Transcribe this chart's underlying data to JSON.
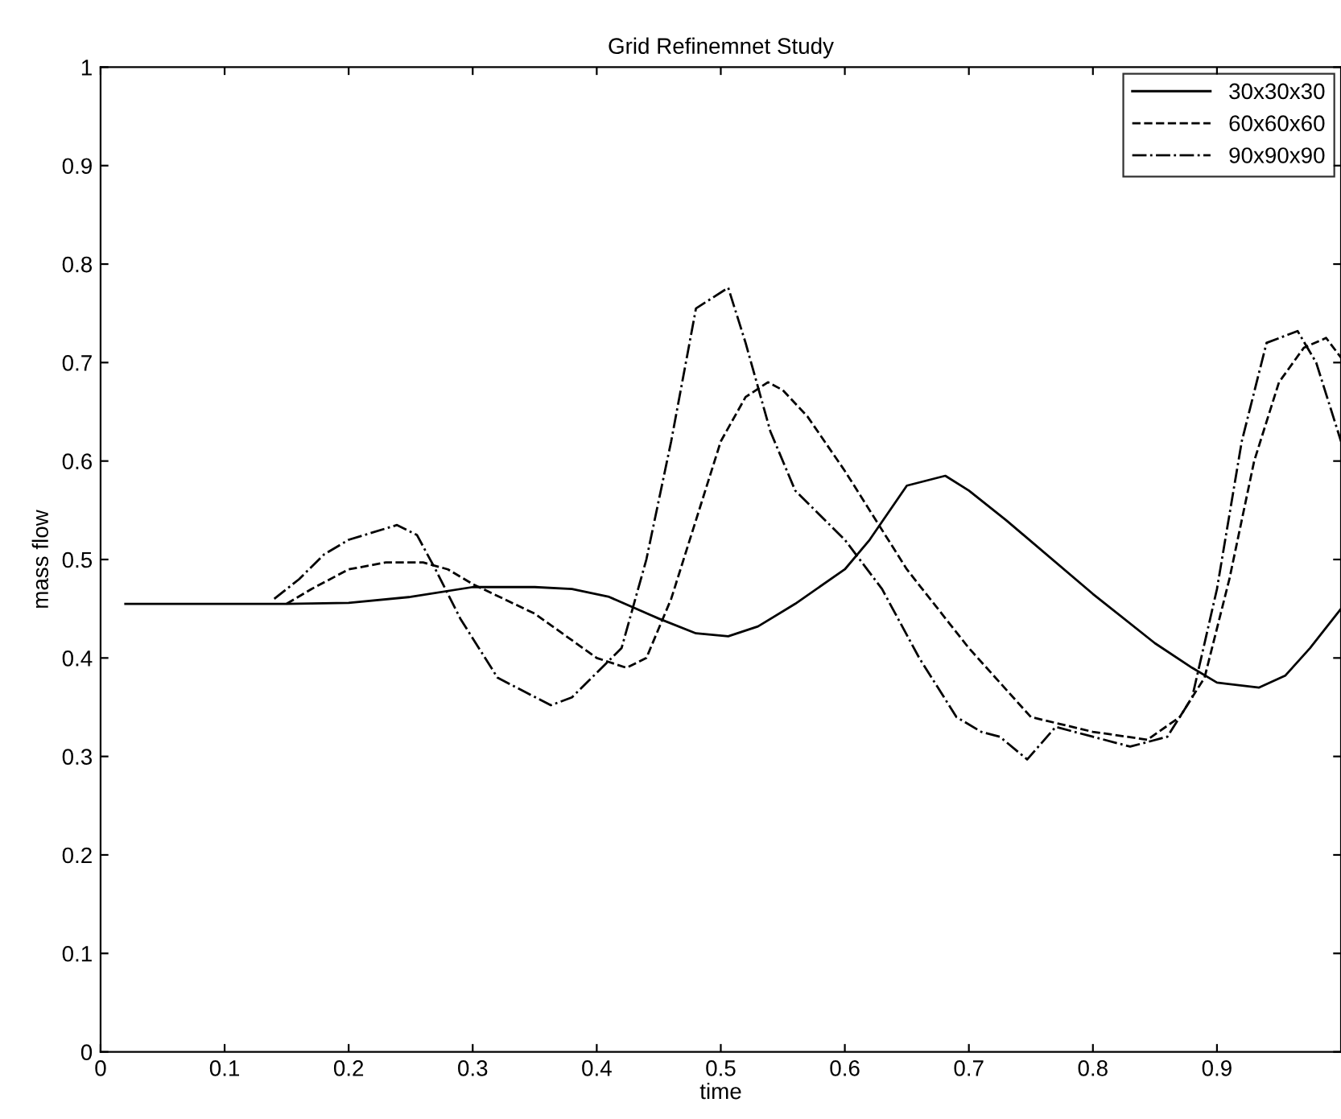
{
  "chart_data": {
    "type": "line",
    "title": "Grid Refinemnet Study",
    "xlabel": "time",
    "ylabel": "mass flow",
    "xlim": [
      0,
      1
    ],
    "ylim": [
      0,
      1
    ],
    "xticks": [
      0,
      0.1,
      0.2,
      0.3,
      0.4,
      0.5,
      0.6,
      0.7,
      0.8,
      0.9
    ],
    "yticks": [
      0,
      0.1,
      0.2,
      0.3,
      0.4,
      0.5,
      0.6,
      0.7,
      0.8,
      0.9,
      1
    ],
    "legend": "top right",
    "grid": false,
    "series": [
      {
        "name": "30x30x30",
        "color": "#000000",
        "line_style": "solid",
        "x": [
          0.02,
          0.15,
          0.2,
          0.25,
          0.3,
          0.35,
          0.38,
          0.41,
          0.45,
          0.48,
          0.506,
          0.53,
          0.56,
          0.6,
          0.62,
          0.65,
          0.681,
          0.7,
          0.73,
          0.8,
          0.85,
          0.88,
          0.9,
          0.934,
          0.955,
          0.975,
          1.0
        ],
        "values": [
          0.455,
          0.455,
          0.456,
          0.462,
          0.472,
          0.472,
          0.47,
          0.462,
          0.44,
          0.425,
          0.422,
          0.432,
          0.455,
          0.49,
          0.52,
          0.575,
          0.585,
          0.57,
          0.54,
          0.465,
          0.415,
          0.39,
          0.375,
          0.37,
          0.382,
          0.41,
          0.45
        ]
      },
      {
        "name": "60x60x60",
        "color": "#000000",
        "line_style": "dashed",
        "x": [
          0.15,
          0.17,
          0.2,
          0.23,
          0.26,
          0.28,
          0.3,
          0.35,
          0.4,
          0.424,
          0.44,
          0.46,
          0.48,
          0.5,
          0.52,
          0.538,
          0.55,
          0.57,
          0.6,
          0.65,
          0.7,
          0.75,
          0.8,
          0.844,
          0.87,
          0.89,
          0.91,
          0.93,
          0.95,
          0.97,
          0.988,
          1.0
        ],
        "values": [
          0.455,
          0.47,
          0.49,
          0.497,
          0.497,
          0.49,
          0.475,
          0.445,
          0.4,
          0.39,
          0.4,
          0.46,
          0.54,
          0.62,
          0.665,
          0.68,
          0.672,
          0.645,
          0.59,
          0.49,
          0.41,
          0.34,
          0.325,
          0.317,
          0.34,
          0.38,
          0.48,
          0.6,
          0.68,
          0.715,
          0.725,
          0.705
        ]
      },
      {
        "name": "90x90x90",
        "color": "#000000",
        "line_style": "dashdot",
        "x": [
          0.14,
          0.16,
          0.18,
          0.2,
          0.239,
          0.255,
          0.27,
          0.29,
          0.32,
          0.363,
          0.38,
          0.4,
          0.42,
          0.44,
          0.46,
          0.48,
          0.506,
          0.52,
          0.54,
          0.56,
          0.6,
          0.63,
          0.66,
          0.69,
          0.71,
          0.725,
          0.747,
          0.77,
          0.8,
          0.83,
          0.86,
          0.88,
          0.9,
          0.92,
          0.94,
          0.965,
          0.98,
          1.0
        ],
        "values": [
          0.46,
          0.48,
          0.505,
          0.52,
          0.535,
          0.525,
          0.49,
          0.44,
          0.38,
          0.352,
          0.36,
          0.385,
          0.41,
          0.5,
          0.62,
          0.755,
          0.776,
          0.72,
          0.63,
          0.57,
          0.52,
          0.47,
          0.4,
          0.34,
          0.325,
          0.32,
          0.297,
          0.33,
          0.32,
          0.31,
          0.32,
          0.36,
          0.47,
          0.62,
          0.72,
          0.732,
          0.7,
          0.62
        ]
      }
    ]
  }
}
